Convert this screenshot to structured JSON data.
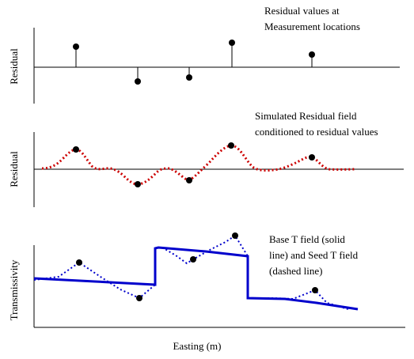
{
  "panels": {
    "residual": {
      "ylabel": "Residual",
      "annotation": [
        "Residual values at",
        "Measurement locations"
      ]
    },
    "simulated": {
      "ylabel": "Residual",
      "annotation": [
        "Simulated Residual field",
        "conditioned to residual values"
      ],
      "curve_color": "#cc0000"
    },
    "transmissivity": {
      "ylabel": "Transmissivity",
      "annotation": [
        "Base T field (solid",
        "line) and Seed T field",
        "(dashed line)"
      ],
      "curve_color": "#0000cc"
    }
  },
  "xlabel": "Easting (m)",
  "chart_data": {
    "type": "line",
    "description_units": "relative",
    "measurement_residuals": [
      0.6,
      -0.45,
      -0.3,
      0.75,
      0.35
    ],
    "colors": {
      "axes": "#000000",
      "points": "#000000",
      "residual_field": "#cc0000",
      "t_field": "#0000cc"
    }
  }
}
